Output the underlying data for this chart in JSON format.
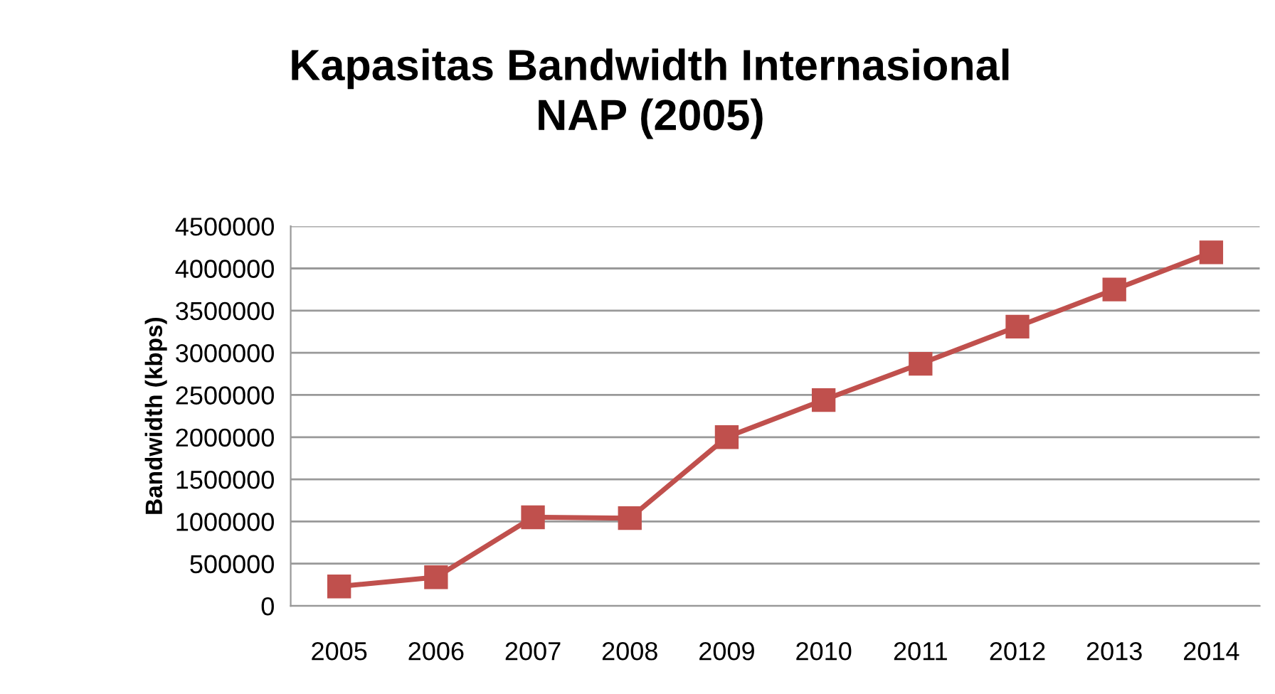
{
  "chart_data": {
    "type": "line",
    "title": "Kapasitas Bandwidth Internasional\nNAP (2005)",
    "ylabel": "Bandwidth (kbps)",
    "categories": [
      "2005",
      "2006",
      "2007",
      "2008",
      "2009",
      "2010",
      "2011",
      "2012",
      "2013",
      "2014"
    ],
    "series": [
      {
        "color": "#c0504d",
        "values": [
          230000,
          340000,
          1050000,
          1040000,
          2000000,
          2440000,
          2870000,
          3310000,
          3750000,
          4190000
        ]
      }
    ],
    "ylim": [
      0,
      4500000
    ],
    "yticks": [
      0,
      500000,
      1000000,
      1500000,
      2000000,
      2500000,
      3000000,
      3500000,
      4000000,
      4500000
    ],
    "grid": "y",
    "marker": "square",
    "line_style": "solid"
  }
}
